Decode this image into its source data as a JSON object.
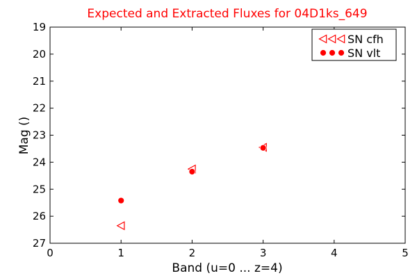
{
  "chart_data": {
    "type": "scatter",
    "title": "Expected and Extracted Fluxes for 04D1ks_649",
    "xlabel": "Band (u=0 ... z=4)",
    "ylabel": "Mag ()",
    "xlim": [
      0,
      5
    ],
    "ylim": [
      27,
      19
    ],
    "y_inverted": true,
    "x_ticks": [
      "0",
      "1",
      "2",
      "3",
      "4",
      "5"
    ],
    "y_ticks": [
      "19",
      "20",
      "21",
      "22",
      "23",
      "24",
      "25",
      "26",
      "27"
    ],
    "grid": false,
    "legend_position": "top-right",
    "title_color": "#ff0000",
    "series": [
      {
        "name": "SN cfh",
        "marker": "triangle-left",
        "color": "#ff0000",
        "filled": false,
        "points": [
          {
            "x": 1,
            "y": 26.35
          },
          {
            "x": 2,
            "y": 24.25
          },
          {
            "x": 3,
            "y": 23.45
          }
        ]
      },
      {
        "name": "SN vlt",
        "marker": "circle",
        "color": "#ff0000",
        "filled": true,
        "points": [
          {
            "x": 1,
            "y": 25.42
          },
          {
            "x": 2,
            "y": 24.35
          },
          {
            "x": 3,
            "y": 23.47
          }
        ]
      }
    ]
  }
}
